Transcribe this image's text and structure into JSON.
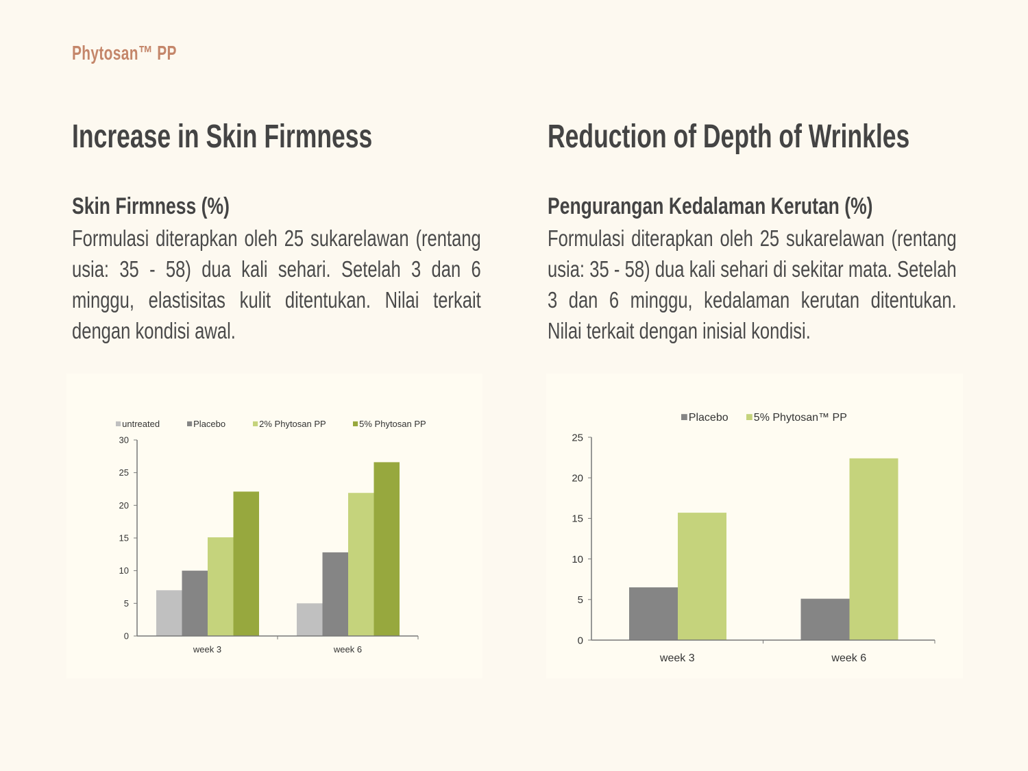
{
  "brand": "Phytosan™ PP",
  "left": {
    "title": "Increase in Skin Firmness",
    "subtitle": "Skin Firmness (%)",
    "body": "Formulasi diterapkan oleh 25 sukarelawan (rentang usia: 35 - 58) dua kali sehari. Setelah 3 dan 6 minggu, elastisitas kulit ditentukan. Nilai terkait dengan kondisi awal."
  },
  "right": {
    "title": "Reduction of Depth of Wrinkles",
    "subtitle": "Pengurangan Kedalaman Kerutan (%)",
    "body": "Formulasi diterapkan oleh 25 sukarelawan (rentang usia: 35 - 58) dua kali sehari di sekitar mata. Setelah 3 dan 6 minggu, kedalaman kerutan ditentukan. Nilai terkait dengan inisial kondisi."
  },
  "chart_data": [
    {
      "type": "bar",
      "categories": [
        "week 3",
        "week 6"
      ],
      "series": [
        {
          "name": "untreated",
          "values": [
            7,
            5
          ],
          "color": "#c0c0c0"
        },
        {
          "name": "Placebo",
          "values": [
            10,
            12.8
          ],
          "color": "#858585"
        },
        {
          "name": "2% Phytosan PP",
          "values": [
            15.1,
            21.9
          ],
          "color": "#c5d37c"
        },
        {
          "name": "5% Phytosan PP",
          "values": [
            22.1,
            26.6
          ],
          "color": "#97a83e"
        }
      ],
      "ylim": [
        0,
        30
      ],
      "yticks": [
        0,
        5,
        10,
        15,
        20,
        25,
        30
      ],
      "legend": "top",
      "grid": false
    },
    {
      "type": "bar",
      "categories": [
        "week 3",
        "week 6"
      ],
      "series": [
        {
          "name": "Placebo",
          "values": [
            6.5,
            5.1
          ],
          "color": "#858585"
        },
        {
          "name": "5% Phytosan™ PP",
          "values": [
            15.7,
            22.4
          ],
          "color": "#c5d37c"
        }
      ],
      "ylim": [
        0,
        25
      ],
      "yticks": [
        0,
        5,
        10,
        15,
        20,
        25
      ],
      "legend": "top",
      "grid": false
    }
  ]
}
